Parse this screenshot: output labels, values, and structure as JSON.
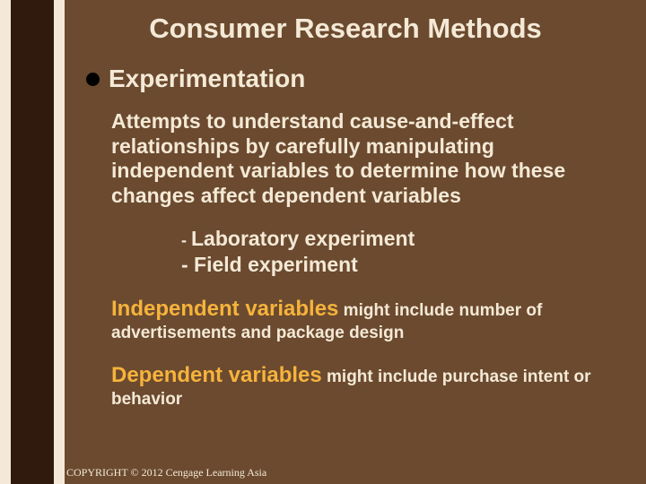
{
  "colors": {
    "slide_bg": "#6b4a2f",
    "left_band_bg": "#f4e9d6",
    "left_inner_bg": "#2f1a0d",
    "title_text": "#f4e9d6",
    "body_text": "#f4e9d6",
    "accent_text": "#f6b33c",
    "bullet": "#000000"
  },
  "typography": {
    "title_fontsize": 31,
    "h1_fontsize": 28,
    "body_fontsize": 23,
    "lead_fontsize": 24,
    "sect_fontsize": 19,
    "copyright_fontsize": 12
  },
  "title": "Consumer Research Methods",
  "bullet": {
    "heading": "Experimentation",
    "paragraph": "Attempts to understand cause-and-effect relationships by carefully manipulating independent variables to determine how these changes affect dependent variables",
    "sub1_dash": "- ",
    "sub1": "Laboratory experiment",
    "sub2": "- Field experiment"
  },
  "section1": {
    "lead": "Independent variables",
    "rest": " might include number of advertisements and package design"
  },
  "section2": {
    "lead": "Dependent variables",
    "rest": " might include purchase intent or behavior"
  },
  "copyright": "COPYRIGHT © 2012 Cengage Learning Asia"
}
